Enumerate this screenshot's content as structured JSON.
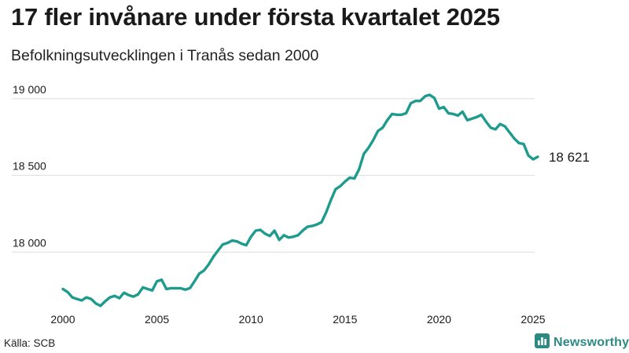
{
  "header": {
    "title": "17 fler invånare under första kvartalet 2025",
    "subtitle": "Befolkningsutvecklingen i Tranås sedan 2000"
  },
  "footer": {
    "source": "Källa: SCB",
    "brand": "Newsworthy",
    "brand_icon": "bar-chart-logo-icon"
  },
  "colors": {
    "line": "#1f9b8d",
    "grid": "#dddddd",
    "brand": "#2d8a83"
  },
  "chart_data": {
    "type": "line",
    "title": "17 fler invånare under första kvartalet 2025",
    "subtitle": "Befolkningsutvecklingen i Tranås sedan 2000",
    "xlabel": "",
    "ylabel": "",
    "xlim": [
      2000,
      2025
    ],
    "ylim": [
      17680,
      19050
    ],
    "grid": "horizontal",
    "legend": "none",
    "x_ticks": [
      2000,
      2005,
      2010,
      2015,
      2020,
      2025
    ],
    "x_tick_labels": [
      "2000",
      "2005",
      "2010",
      "2015",
      "2020",
      "2025"
    ],
    "y_ticks": [
      18000,
      18500,
      19000
    ],
    "y_tick_labels": [
      "18 000",
      "18 500",
      "19 000"
    ],
    "end_label": "18 621",
    "series": [
      {
        "x": [
          2000.0,
          2000.25,
          2000.5,
          2000.75,
          2001.0,
          2001.25,
          2001.5,
          2001.75,
          2002.0,
          2002.25,
          2002.5,
          2002.75,
          2003.0,
          2003.25,
          2003.5,
          2003.75,
          2004.0,
          2004.25,
          2004.5,
          2004.75,
          2005.0,
          2005.25,
          2005.5,
          2005.75,
          2006.0,
          2006.25,
          2006.5,
          2006.75,
          2007.0,
          2007.25,
          2007.5,
          2007.75,
          2008.0,
          2008.25,
          2008.5,
          2008.75,
          2009.0,
          2009.25,
          2009.5,
          2009.75,
          2010.0,
          2010.25,
          2010.5,
          2010.75,
          2011.0,
          2011.25,
          2011.5,
          2011.75,
          2012.0,
          2012.25,
          2012.5,
          2012.75,
          2013.0,
          2013.25,
          2013.5,
          2013.75,
          2014.0,
          2014.25,
          2014.5,
          2014.75,
          2015.0,
          2015.25,
          2015.5,
          2015.75,
          2016.0,
          2016.25,
          2016.5,
          2016.75,
          2017.0,
          2017.25,
          2017.5,
          2017.75,
          2018.0,
          2018.25,
          2018.5,
          2018.75,
          2019.0,
          2019.25,
          2019.5,
          2019.75,
          2020.0,
          2020.25,
          2020.5,
          2020.75,
          2021.0,
          2021.25,
          2021.5,
          2021.75,
          2022.0,
          2022.25,
          2022.5,
          2022.75,
          2023.0,
          2023.25,
          2023.5,
          2023.75,
          2024.0,
          2024.25,
          2024.5,
          2024.75,
          2025.0,
          2025.25
        ],
        "y": [
          17760,
          17740,
          17705,
          17695,
          17685,
          17705,
          17695,
          17665,
          17650,
          17680,
          17705,
          17715,
          17700,
          17735,
          17720,
          17710,
          17725,
          17770,
          17760,
          17750,
          17810,
          17820,
          17760,
          17765,
          17765,
          17765,
          17755,
          17765,
          17810,
          17860,
          17880,
          17920,
          17970,
          18010,
          18050,
          18060,
          18075,
          18070,
          18055,
          18045,
          18100,
          18140,
          18145,
          18120,
          18105,
          18140,
          18080,
          18110,
          18095,
          18100,
          18110,
          18140,
          18165,
          18170,
          18180,
          18195,
          18260,
          18340,
          18410,
          18430,
          18460,
          18485,
          18480,
          18540,
          18640,
          18680,
          18730,
          18790,
          18810,
          18860,
          18900,
          18895,
          18895,
          18905,
          18970,
          18985,
          18985,
          19015,
          19025,
          19005,
          18935,
          18945,
          18905,
          18900,
          18890,
          18915,
          18860,
          18870,
          18880,
          18895,
          18850,
          18810,
          18800,
          18835,
          18820,
          18780,
          18740,
          18710,
          18705,
          18630,
          18605,
          18621
        ]
      }
    ]
  }
}
